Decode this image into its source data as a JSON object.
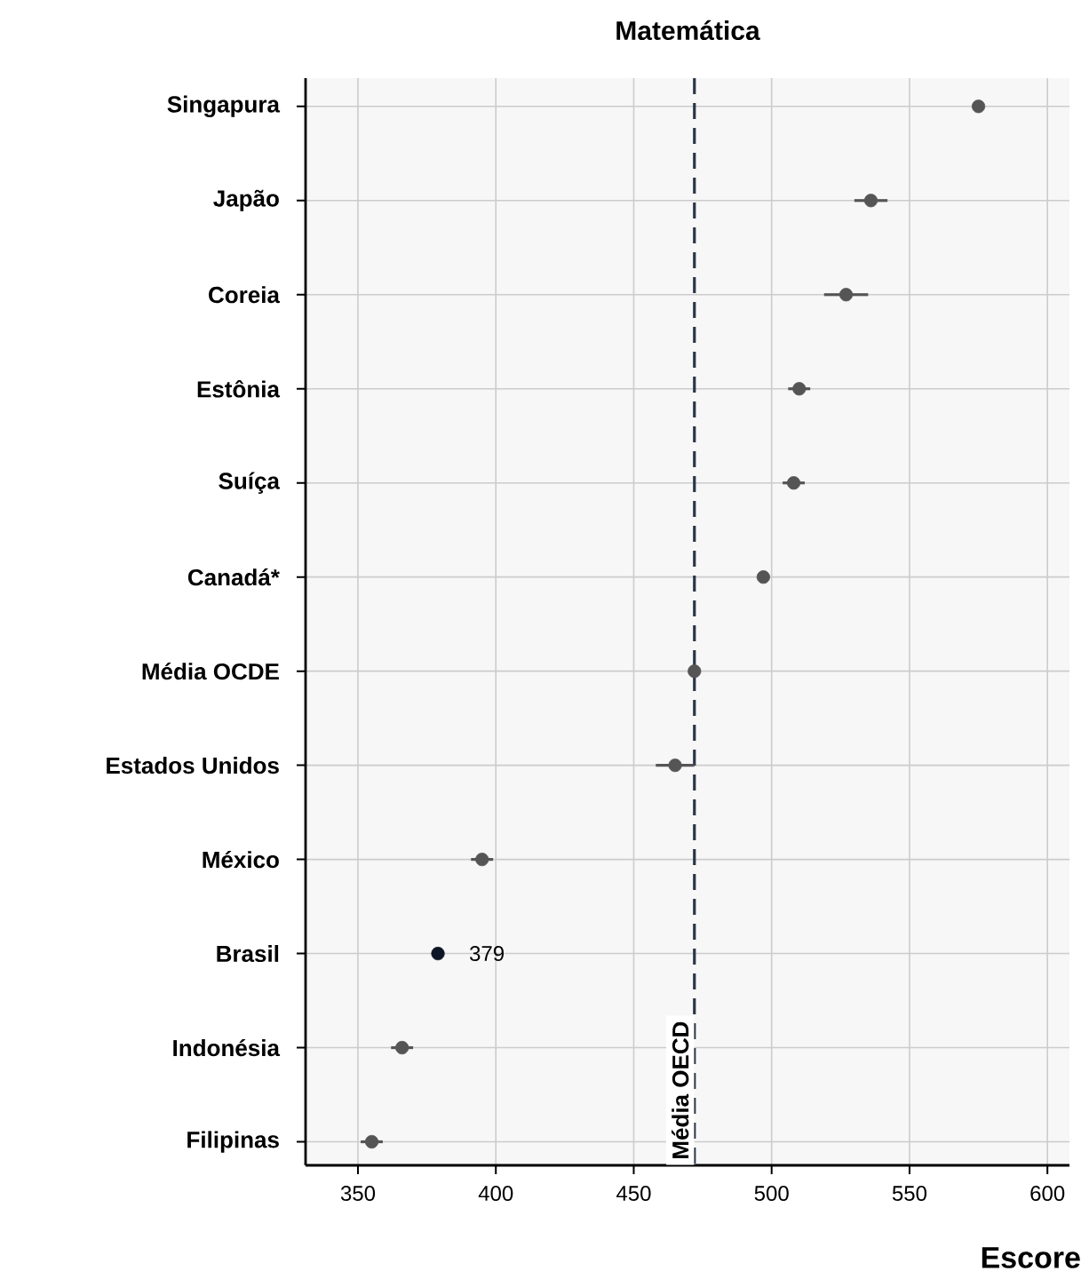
{
  "chart_data": {
    "type": "scatter",
    "orientation": "horizontal",
    "title": "Matemática",
    "xlabel": "Escore",
    "categories": [
      "Singapura",
      "Japão",
      "Coreia",
      "Estônia",
      "Suíça",
      "Canadá*",
      "Média OCDE",
      "Estados Unidos",
      "México",
      "Brasil",
      "Indonésia",
      "Filipinas"
    ],
    "values": [
      575,
      536,
      527,
      510,
      508,
      497,
      472,
      465,
      395,
      379,
      366,
      355
    ],
    "errors": [
      null,
      6,
      8,
      4,
      4,
      null,
      null,
      7,
      4,
      null,
      4,
      4
    ],
    "colors": [
      "#555555",
      "#555555",
      "#555555",
      "#555555",
      "#555555",
      "#555555",
      "#555555",
      "#555555",
      "#555555",
      "#0d1626",
      "#555555",
      "#555555"
    ],
    "xlim": [
      331,
      608
    ],
    "xticks": [
      350,
      400,
      450,
      500,
      550,
      600
    ],
    "grid": true,
    "marker": "circle",
    "ref_lines": [
      {
        "axis": "x",
        "value": 472,
        "label": "Média OECD",
        "color": "#2b3448",
        "line_style": "dashed"
      }
    ],
    "annotations": [
      {
        "text": "379",
        "x": 379,
        "y": "Brasil"
      }
    ]
  }
}
